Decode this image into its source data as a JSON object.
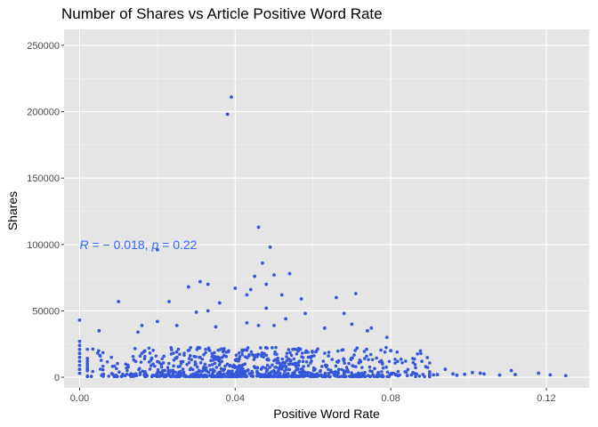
{
  "chart_data": {
    "type": "scatter",
    "title": "Number of Shares vs Article Positive Word Rate",
    "xlabel": "Positive Word Rate",
    "ylabel": "Shares",
    "xlim": [
      -0.004,
      0.131
    ],
    "ylim": [
      -8000,
      262000
    ],
    "x_ticks": [
      0.0,
      0.04,
      0.08,
      0.12
    ],
    "x_tick_labels": [
      "0.00",
      "0.04",
      "0.08",
      "0.12"
    ],
    "y_ticks": [
      0,
      50000,
      100000,
      150000,
      200000,
      250000
    ],
    "y_tick_labels": [
      "0",
      "50000",
      "100000",
      "150000",
      "200000",
      "250000"
    ],
    "grid": true,
    "legend": "none",
    "colors": {
      "panel": "#e5e5e5",
      "grid_major": "#ffffff",
      "points": "#3557d9",
      "annotation": "#3366ff"
    },
    "annotation": {
      "text_parts": [
        "R",
        " = − 0.018, ",
        "p",
        " = 0.22"
      ],
      "x": 0.0,
      "y": 100000
    },
    "points": [
      [
        0.038,
        198000
      ],
      [
        0.039,
        211000
      ],
      [
        0.046,
        113000
      ],
      [
        0.049,
        98000
      ],
      [
        0.02,
        96000
      ],
      [
        0.047,
        86000
      ],
      [
        0.045,
        76000
      ],
      [
        0.054,
        78000
      ],
      [
        0.05,
        77000
      ],
      [
        0.031,
        72000
      ],
      [
        0.033,
        70000
      ],
      [
        0.028,
        68000
      ],
      [
        0.04,
        67000
      ],
      [
        0.048,
        70000
      ],
      [
        0.044,
        66000
      ],
      [
        0.071,
        63000
      ],
      [
        0.066,
        60000
      ],
      [
        0.052,
        62000
      ],
      [
        0.043,
        62000
      ],
      [
        0.057,
        59000
      ],
      [
        0.01,
        57000
      ],
      [
        0.023,
        57000
      ],
      [
        0.036,
        56000
      ],
      [
        0.068,
        48000
      ],
      [
        0.033,
        50000
      ],
      [
        0.03,
        49000
      ],
      [
        0.048,
        52000
      ],
      [
        0.058,
        48000
      ],
      [
        0.0,
        43000
      ],
      [
        0.02,
        42000
      ],
      [
        0.016,
        39000
      ],
      [
        0.025,
        39000
      ],
      [
        0.046,
        39000
      ],
      [
        0.05,
        39000
      ],
      [
        0.07,
        40000
      ],
      [
        0.063,
        37000
      ],
      [
        0.035,
        38000
      ],
      [
        0.075,
        37000
      ],
      [
        0.005,
        35000
      ],
      [
        0.015,
        34000
      ],
      [
        0.043,
        41000
      ],
      [
        0.053,
        44000
      ],
      [
        0.074,
        35000
      ],
      [
        0.0,
        27000
      ],
      [
        0.0,
        24000
      ],
      [
        0.0,
        21000
      ],
      [
        0.0,
        18000
      ],
      [
        0.0,
        15000
      ],
      [
        0.0,
        12000
      ],
      [
        0.0,
        9000
      ],
      [
        0.0,
        6000
      ],
      [
        0.0,
        3000
      ],
      [
        0.079,
        30000
      ],
      [
        0.08,
        20000
      ],
      [
        0.088,
        12000
      ],
      [
        0.089,
        8000
      ],
      [
        0.094,
        6000
      ],
      [
        0.101,
        3500
      ],
      [
        0.103,
        3000
      ],
      [
        0.104,
        2500
      ],
      [
        0.111,
        5000
      ],
      [
        0.112,
        2000
      ],
      [
        0.118,
        3000
      ],
      [
        0.121,
        1800
      ],
      [
        0.125,
        1200
      ],
      [
        0.099,
        2200
      ],
      [
        0.097,
        1500
      ],
      [
        0.092,
        2000
      ],
      [
        0.086,
        3000
      ],
      [
        0.084,
        4000
      ],
      [
        0.091,
        1800
      ],
      [
        0.096,
        2500
      ],
      [
        0.108,
        1600
      ]
    ]
  }
}
